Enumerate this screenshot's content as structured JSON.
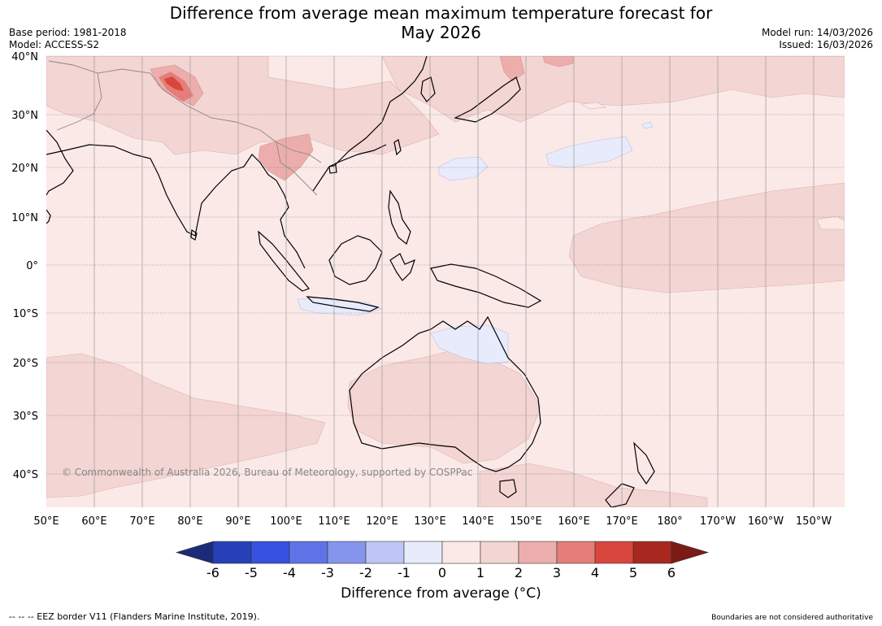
{
  "title": {
    "line1": "Difference from average mean maximum temperature forecast for",
    "line2": "May 2026"
  },
  "meta_left": {
    "base_period": "Base period: 1981-2018",
    "model": "Model: ACCESS-S2"
  },
  "meta_right": {
    "model_run": "Model run: 14/03/2026",
    "issued": "Issued: 16/03/2026"
  },
  "map": {
    "lat_labels": [
      "40°N",
      "30°N",
      "20°N",
      "10°N",
      "0°",
      "10°S",
      "20°S",
      "30°S",
      "40°S"
    ],
    "lon_labels": [
      "50°E",
      "60°E",
      "70°E",
      "80°E",
      "90°E",
      "100°E",
      "110°E",
      "120°E",
      "130°E",
      "140°E",
      "150°E",
      "160°E",
      "170°E",
      "180°",
      "170°W",
      "160°W",
      "150°W"
    ],
    "copyright": "© Commonwealth of Australia 2026, Bureau of Meteorology, supported by COSPPac"
  },
  "colorbar": {
    "ticks": [
      "-6",
      "-5",
      "-4",
      "-3",
      "-2",
      "-1",
      "0",
      "1",
      "2",
      "3",
      "4",
      "5",
      "6"
    ],
    "colors": [
      "#1c2a7a",
      "#2740b8",
      "#3650df",
      "#5e74e6",
      "#8595ec",
      "#bfc6f5",
      "#e8ebfb",
      "#fbe9e7",
      "#f3d5d3",
      "#ecaeac",
      "#e57e78",
      "#d8463e",
      "#a8281f",
      "#7c1b15"
    ],
    "label": "Difference from average (°C)"
  },
  "footer": {
    "left": "--  --  -- EEZ border V11 (Flanders Marine Institute, 2019).",
    "right": "Boundaries are not considered authoritative"
  }
}
